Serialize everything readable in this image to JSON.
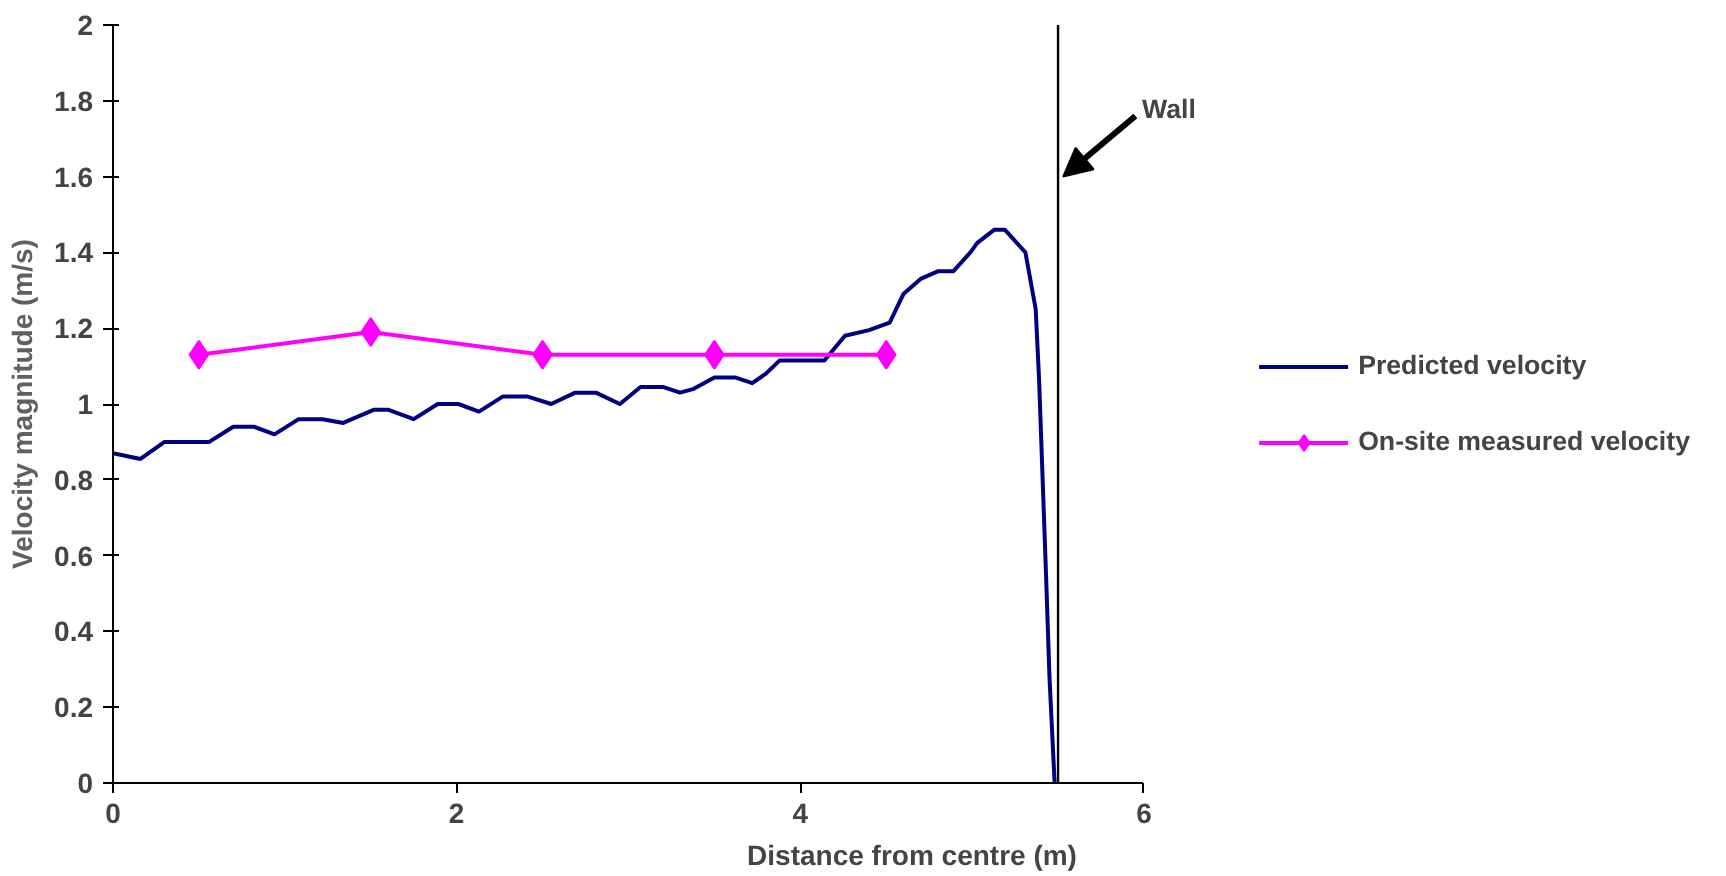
{
  "chart_data": {
    "type": "line",
    "xlabel": "Distance from centre (m)",
    "ylabel": "Velocity magnitude (m/s)",
    "xlim": [
      0,
      6
    ],
    "xticks": [
      0,
      2,
      4,
      6
    ],
    "ylim": [
      0,
      2
    ],
    "yticks": [
      0,
      0.2,
      0.4,
      0.6,
      0.8,
      1,
      1.2,
      1.4,
      1.6,
      1.8,
      2
    ],
    "grid": false,
    "legend": "right",
    "series": [
      {
        "name": "Predicted velocity",
        "color": "#000080",
        "marker": "none",
        "x": [
          0,
          0.16,
          0.3,
          0.56,
          0.7,
          0.82,
          0.94,
          1.08,
          1.22,
          1.34,
          1.52,
          1.6,
          1.75,
          1.89,
          2.01,
          2.13,
          2.27,
          2.41,
          2.55,
          2.69,
          2.81,
          2.95,
          3.07,
          3.2,
          3.3,
          3.38,
          3.5,
          3.62,
          3.72,
          3.8,
          3.88,
          4.14,
          4.26,
          4.4,
          4.52,
          4.6,
          4.7,
          4.8,
          4.89,
          4.99,
          5.03,
          5.13,
          5.19,
          5.31,
          5.37,
          5.39,
          5.43,
          5.45,
          5.48
        ],
        "values": [
          0.87,
          0.855,
          0.9,
          0.9,
          0.94,
          0.94,
          0.92,
          0.96,
          0.96,
          0.95,
          0.985,
          0.985,
          0.96,
          1.0,
          1.0,
          0.98,
          1.02,
          1.02,
          1.0,
          1.03,
          1.03,
          1.0,
          1.045,
          1.045,
          1.03,
          1.04,
          1.07,
          1.07,
          1.055,
          1.08,
          1.115,
          1.115,
          1.18,
          1.195,
          1.215,
          1.29,
          1.33,
          1.35,
          1.35,
          1.4,
          1.425,
          1.46,
          1.46,
          1.4,
          1.25,
          1.06,
          0.55,
          0.28,
          0
        ]
      },
      {
        "name": "On-site measured velocity",
        "color": "#ff00ff",
        "marker": "diamond",
        "x": [
          0.5,
          1.5,
          2.5,
          3.5,
          4.5
        ],
        "values": [
          1.13,
          1.19,
          1.13,
          1.13,
          1.13
        ]
      }
    ],
    "ref_lines": [
      {
        "axis": "x",
        "value": 5.5,
        "label": "Wall",
        "color": "#000000"
      }
    ]
  }
}
